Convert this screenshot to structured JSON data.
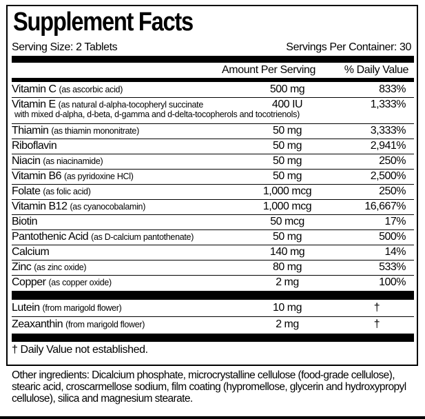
{
  "title": "Supplement Facts",
  "serving_size": "Serving Size: 2 Tablets",
  "servings_per_container": "Servings Per Container: 30",
  "columns": {
    "amount": "Amount Per Serving",
    "dv": "% Daily Value"
  },
  "rows": [
    {
      "name": "Vitamin C",
      "source": "(as ascorbic acid)",
      "amount": "500 mg",
      "dv": "833%"
    },
    {
      "name": "Vitamin E",
      "source": "(as natural d-alpha-tocopheryl succinate",
      "source2": "with mixed d-alpha, d-beta, d-gamma and d-delta-tocopherols and tocotrienols)",
      "amount": "400 IU",
      "dv": "1,333%"
    },
    {
      "name": "Thiamin",
      "source": "(as thiamin mononitrate)",
      "amount": "50 mg",
      "dv": "3,333%"
    },
    {
      "name": "Riboflavin",
      "source": "",
      "amount": "50 mg",
      "dv": "2,941%"
    },
    {
      "name": "Niacin",
      "source": "(as niacinamide)",
      "amount": "50 mg",
      "dv": "250%"
    },
    {
      "name": "Vitamin B6",
      "source": "(as pyridoxine HCl)",
      "amount": "50 mg",
      "dv": "2,500%"
    },
    {
      "name": "Folate",
      "source": "(as folic acid)",
      "amount": "1,000 mcg",
      "dv": "250%"
    },
    {
      "name": "Vitamin B12",
      "source": "(as cyanocobalamin)",
      "amount": "1,000 mcg",
      "dv": "16,667%"
    },
    {
      "name": "Biotin",
      "source": "",
      "amount": "50 mcg",
      "dv": "17%"
    },
    {
      "name": "Pantothenic Acid",
      "source": "(as D-calcium pantothenate)",
      "amount": "50 mg",
      "dv": "500%"
    },
    {
      "name": "Calcium",
      "source": "",
      "amount": "140 mg",
      "dv": "14%"
    },
    {
      "name": "Zinc",
      "source": "(as zinc oxide)",
      "amount": "80 mg",
      "dv": "533%"
    },
    {
      "name": "Copper",
      "source": "(as copper oxide)",
      "amount": "2 mg",
      "dv": "100%"
    }
  ],
  "other_rows": [
    {
      "name": "Lutein",
      "source": "(from marigold flower)",
      "amount": "10 mg",
      "dv": "†"
    },
    {
      "name": "Zeaxanthin",
      "source": "(from marigold flower)",
      "amount": "2 mg",
      "dv": "†"
    }
  ],
  "footnote": "† Daily Value not established.",
  "other_ingredients": "Other ingredients: Dicalcium phosphate, microcrystalline cellulose (food-grade cellulose), stearic acid, croscarmellose sodium, film coating (hypromellose, glycerin and hydroxypropyl cellulose), silica and magnesium stearate."
}
